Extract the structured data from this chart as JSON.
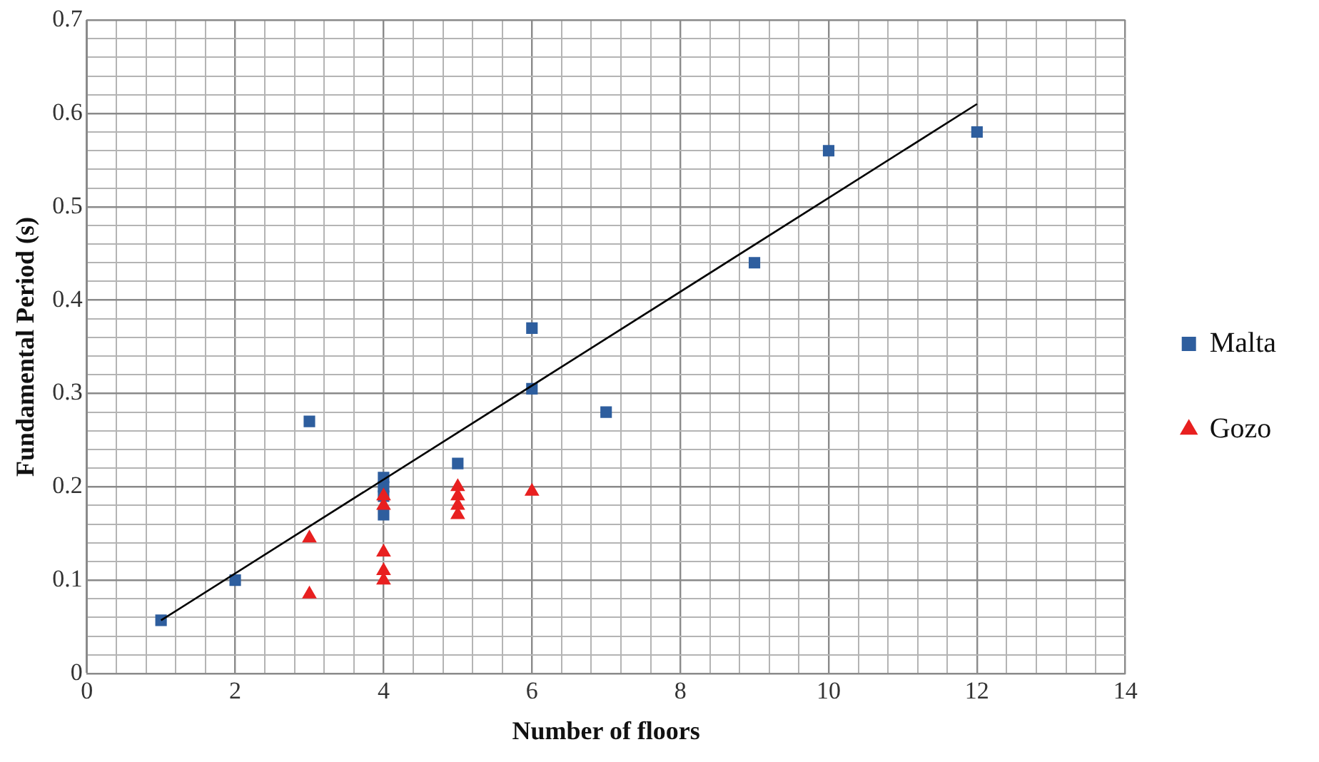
{
  "chart_data": {
    "type": "scatter",
    "xlabel": "Number of floors",
    "ylabel": "Fundamental Period (s)",
    "xlim": [
      0,
      14
    ],
    "ylim": [
      0,
      0.7
    ],
    "xticks": [
      0,
      {
        "value": 0.4,
        "label": null
      },
      {
        "value": 0.8,
        "label": null
      },
      {
        "value": 1.2,
        "label": null
      },
      {
        "value": 1.6,
        "label": null
      },
      2,
      {
        "value": 2.4,
        "label": null
      },
      {
        "value": 2.8,
        "label": null
      },
      {
        "value": 3.2,
        "label": null
      },
      {
        "value": 3.6,
        "label": null
      },
      4,
      {
        "value": 4.4,
        "label": null
      },
      {
        "value": 4.8,
        "label": null
      },
      {
        "value": 5.2,
        "label": null
      },
      {
        "value": 5.6,
        "label": null
      },
      6,
      {
        "value": 6.4,
        "label": null
      },
      {
        "value": 6.8,
        "label": null
      },
      {
        "value": 7.2,
        "label": null
      },
      {
        "value": 7.6,
        "label": null
      },
      8,
      {
        "value": 8.4,
        "label": null
      },
      {
        "value": 8.8,
        "label": null
      },
      {
        "value": 9.2,
        "label": null
      },
      {
        "value": 9.6,
        "label": null
      },
      10,
      {
        "value": 10.4,
        "label": null
      },
      {
        "value": 10.8,
        "label": null
      },
      {
        "value": 11.2,
        "label": null
      },
      {
        "value": 11.6,
        "label": null
      },
      12,
      {
        "value": 12.4,
        "label": null
      },
      {
        "value": 12.8,
        "label": null
      },
      {
        "value": 13.2,
        "label": null
      },
      {
        "value": 13.6,
        "label": null
      },
      14
    ],
    "yticks": [
      0,
      {
        "value": 0.02,
        "label": null
      },
      {
        "value": 0.04,
        "label": null
      },
      {
        "value": 0.06,
        "label": null
      },
      {
        "value": 0.08,
        "label": null
      },
      0.1,
      {
        "value": 0.12,
        "label": null
      },
      {
        "value": 0.14,
        "label": null
      },
      {
        "value": 0.16,
        "label": null
      },
      {
        "value": 0.18,
        "label": null
      },
      0.2,
      {
        "value": 0.22,
        "label": null
      },
      {
        "value": 0.24,
        "label": null
      },
      {
        "value": 0.26,
        "label": null
      },
      {
        "value": 0.28,
        "label": null
      },
      0.3,
      {
        "value": 0.32,
        "label": null
      },
      {
        "value": 0.34,
        "label": null
      },
      {
        "value": 0.36,
        "label": null
      },
      {
        "value": 0.38,
        "label": null
      },
      0.4,
      {
        "value": 0.42,
        "label": null
      },
      {
        "value": 0.44,
        "label": null
      },
      {
        "value": 0.46,
        "label": null
      },
      {
        "value": 0.48,
        "label": null
      },
      0.5,
      {
        "value": 0.52,
        "label": null
      },
      {
        "value": 0.54,
        "label": null
      },
      {
        "value": 0.56,
        "label": null
      },
      {
        "value": 0.58,
        "label": null
      },
      0.6,
      {
        "value": 0.62,
        "label": null
      },
      {
        "value": 0.64,
        "label": null
      },
      {
        "value": 0.66,
        "label": null
      },
      {
        "value": 0.68,
        "label": null
      },
      0.7
    ],
    "grid": true,
    "legend": "right",
    "series": [
      {
        "name": "Malta",
        "color": "#2e5e9e",
        "marker": "square",
        "x": [
          1,
          2,
          3,
          4,
          4,
          4,
          4,
          5,
          6,
          6,
          7,
          9,
          10,
          12
        ],
        "values": [
          0.057,
          0.1,
          0.27,
          0.21,
          0.2,
          0.19,
          0.17,
          0.225,
          0.37,
          0.305,
          0.28,
          0.44,
          0.56,
          0.58
        ]
      },
      {
        "name": "Gozo",
        "color": "#e82020",
        "marker": "triangle",
        "x": [
          3,
          3,
          4,
          4,
          4,
          4,
          4,
          5,
          5,
          5,
          5,
          6
        ],
        "values": [
          0.145,
          0.085,
          0.19,
          0.18,
          0.13,
          0.11,
          0.1,
          0.2,
          0.19,
          0.18,
          0.17,
          0.195
        ]
      },
      {
        "type": "line",
        "color": "#000000",
        "marker": "none",
        "x": [
          1,
          12
        ],
        "values": [
          0.057,
          0.61
        ]
      }
    ]
  }
}
